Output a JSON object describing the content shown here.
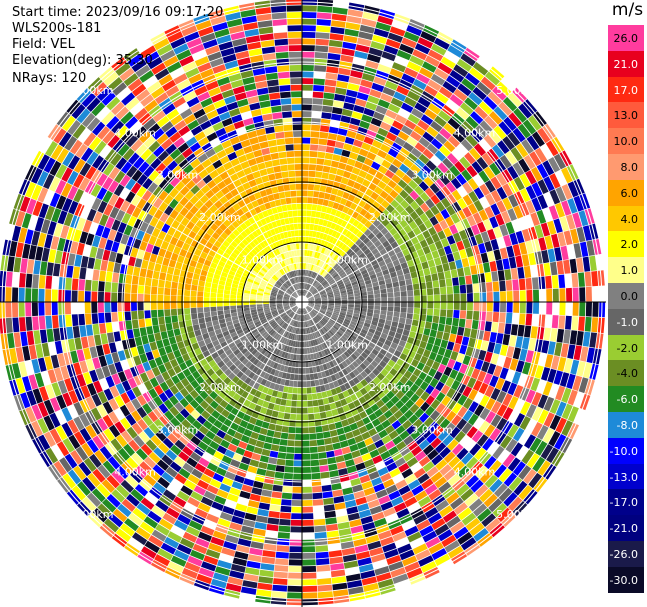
{
  "header": {
    "start_time": "Start time: 2023/09/16 09:17:20",
    "instrument": "WLS200s-181",
    "field": "Field: VEL",
    "elevation": "Elevation(deg): 35.30",
    "nrays": "NRays: 120"
  },
  "rings": {
    "labels": [
      "1.00km",
      "2.00km",
      "3.00km",
      "4.00km",
      "5.00km"
    ]
  },
  "colorbar": {
    "unit": "m/s",
    "entries": [
      {
        "label": "26.0",
        "color": "#ff3c9e",
        "text": "#000000"
      },
      {
        "label": "21.0",
        "color": "#e8001e",
        "text": "#ffffff"
      },
      {
        "label": "17.0",
        "color": "#ff2a12",
        "text": "#ffffff"
      },
      {
        "label": "13.0",
        "color": "#ff5a3c",
        "text": "#000000"
      },
      {
        "label": "10.0",
        "color": "#ff7a52",
        "text": "#000000"
      },
      {
        "label": "8.0",
        "color": "#ff9a70",
        "text": "#000000"
      },
      {
        "label": "6.0",
        "color": "#ffa400",
        "text": "#000000"
      },
      {
        "label": "4.0",
        "color": "#ffc800",
        "text": "#000000"
      },
      {
        "label": "2.0",
        "color": "#ffff00",
        "text": "#000000"
      },
      {
        "label": "1.0",
        "color": "#ffff8a",
        "text": "#000000"
      },
      {
        "label": "0.0",
        "color": "#808080",
        "text": "#000000"
      },
      {
        "label": "-1.0",
        "color": "#666666",
        "text": "#ffffff"
      },
      {
        "label": "-2.0",
        "color": "#9acd32",
        "text": "#000000"
      },
      {
        "label": "-4.0",
        "color": "#6b8e23",
        "text": "#000000"
      },
      {
        "label": "-6.0",
        "color": "#228b22",
        "text": "#ffffff"
      },
      {
        "label": "-8.0",
        "color": "#1e8ad8",
        "text": "#ffffff"
      },
      {
        "label": "-10.0",
        "color": "#0000ff",
        "text": "#ffffff"
      },
      {
        "label": "-13.0",
        "color": "#0000cd",
        "text": "#ffffff"
      },
      {
        "label": "-17.0",
        "color": "#00008b",
        "text": "#ffffff"
      },
      {
        "label": "-21.0",
        "color": "#000080",
        "text": "#ffffff"
      },
      {
        "label": "-26.0",
        "color": "#1a1a4a",
        "text": "#ffffff"
      },
      {
        "label": "-30.0",
        "color": "#0a0a28",
        "text": "#ffffff"
      }
    ]
  }
}
